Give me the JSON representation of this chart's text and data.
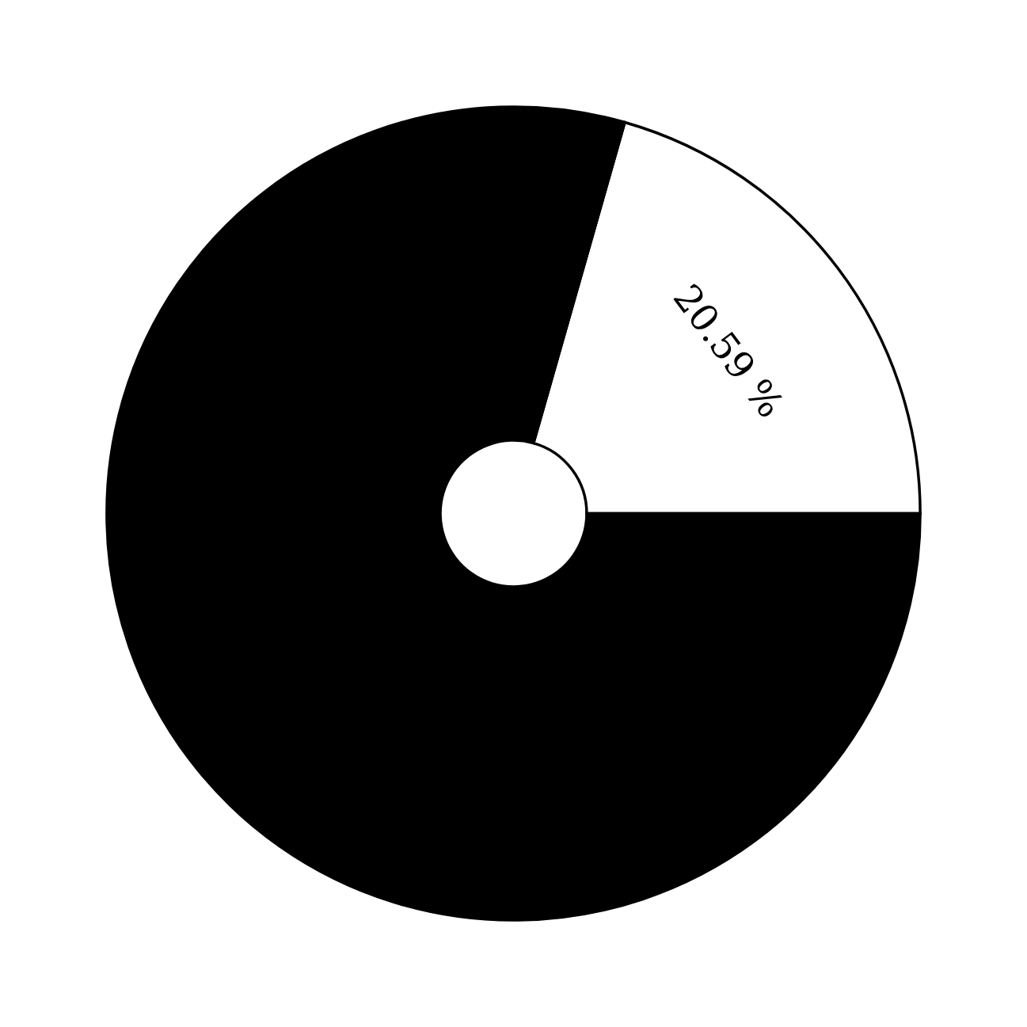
{
  "chart_data": {
    "type": "donut",
    "categories": [
      null,
      null
    ],
    "values": [
      20.59,
      79.41
    ],
    "colors": [
      "#ffffff",
      "#000000"
    ],
    "value_labels": [
      "20.59 %",
      null
    ]
  }
}
